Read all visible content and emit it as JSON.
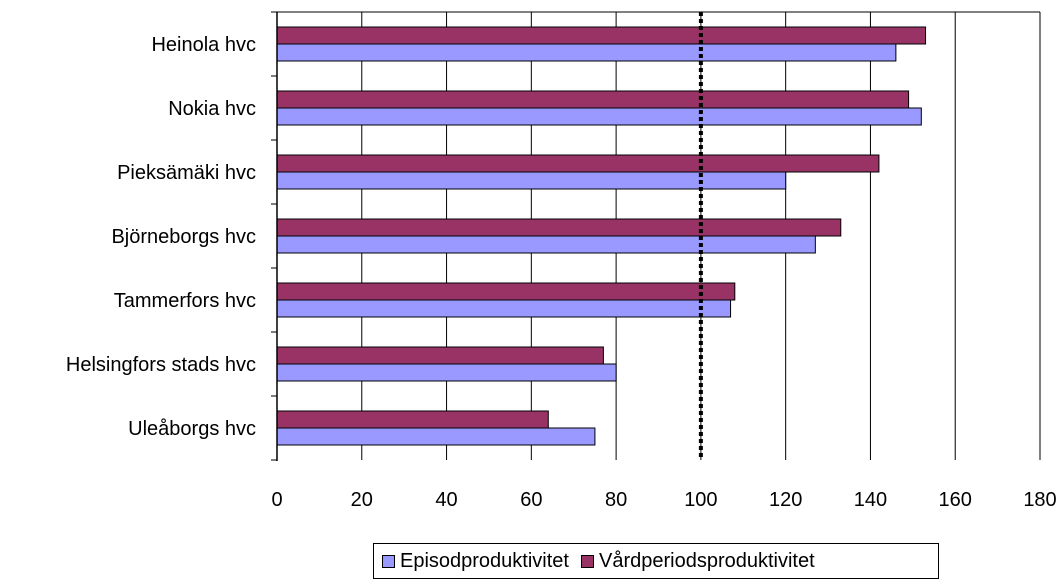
{
  "chart_data": {
    "type": "bar",
    "orientation": "horizontal",
    "categories": [
      "Heinola hvc",
      "Nokia hvc",
      "Pieksämäki hvc",
      "Björneborgs hvc",
      "Tammerfors hvc",
      "Helsingfors stads hvc",
      "Uleåborgs hvc"
    ],
    "series": [
      {
        "name": "Vårdperiodsproduktivitet",
        "color": "#993366",
        "values": [
          153,
          149,
          142,
          133,
          108,
          77,
          64
        ]
      },
      {
        "name": "Episodproduktivitet",
        "color": "#9999FF",
        "values": [
          146,
          152,
          120,
          127,
          107,
          80,
          75
        ]
      }
    ],
    "xlim": [
      0,
      180
    ],
    "xticks": [
      "0",
      "20",
      "40",
      "60",
      "80",
      "100",
      "120",
      "140",
      "160",
      "180"
    ],
    "grid": "vertical",
    "reference_line": {
      "x": 100,
      "style": "dotted"
    },
    "legend_position": "bottom"
  }
}
